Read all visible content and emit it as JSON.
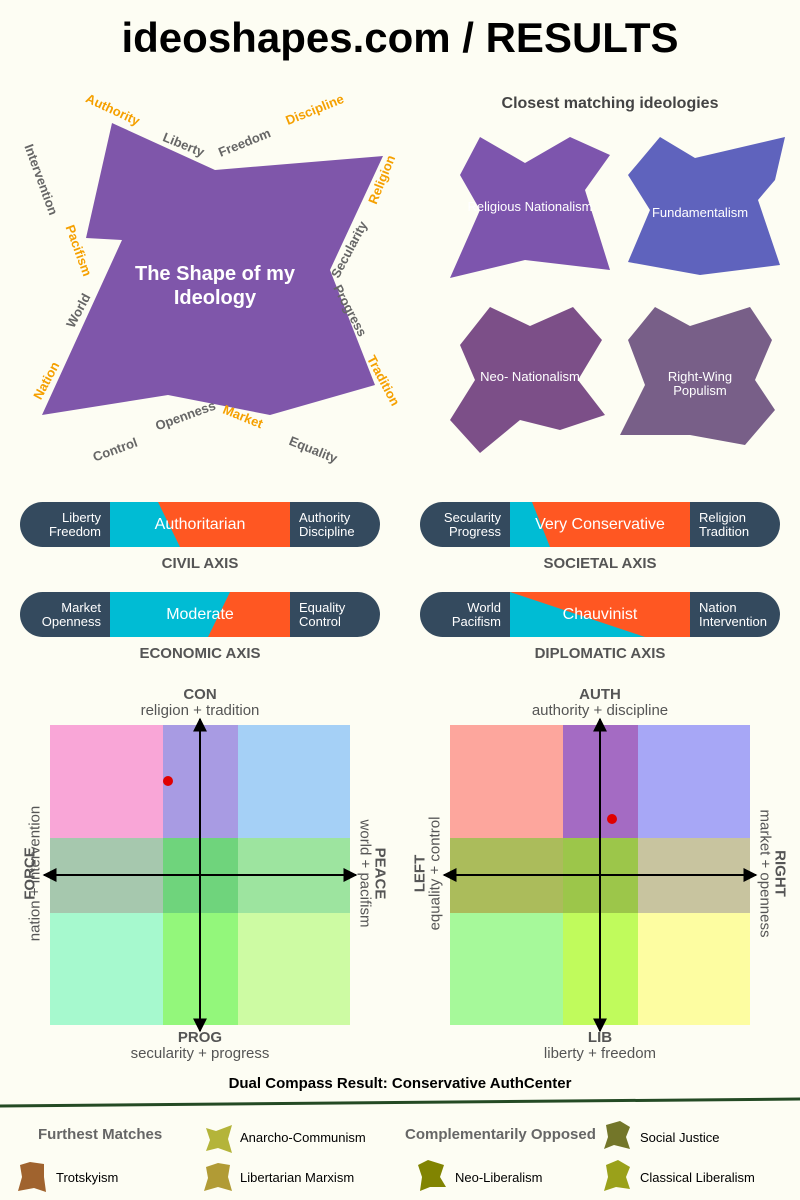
{
  "site": {
    "title": "ideoshapes.com / RESULTS"
  },
  "shape": {
    "title": "The Shape of my Ideology",
    "labels": {
      "authority": "Authority",
      "liberty": "Liberty",
      "freedom": "Freedom",
      "discipline": "Discipline",
      "religion": "Religion",
      "secularity": "Secularity",
      "progress": "Progress",
      "tradition": "Tradition",
      "equality": "Equality",
      "market": "Market",
      "openness": "Openness",
      "control": "Control",
      "nation": "Nation",
      "world": "World",
      "pacifism": "Pacifism",
      "intervention": "Intervention"
    },
    "color": "#7f56aa"
  },
  "closest": {
    "title": "Closest matching ideologies",
    "items": [
      {
        "label": "Religious Nationalism",
        "color": "#7d55ad"
      },
      {
        "label": "Fundamentalism",
        "color": "#5f63bd"
      },
      {
        "label": "Neo- Nationalism",
        "color": "#7c4f88"
      },
      {
        "label": "Right-Wing Populism",
        "color": "#785f88"
      }
    ]
  },
  "axes": {
    "civil": {
      "left": [
        "Liberty",
        "Freedom"
      ],
      "right": [
        "Authority",
        "Discipline"
      ],
      "result": "Authoritarian",
      "caption": "CIVIL AXIS"
    },
    "societal": {
      "left": [
        "Secularity",
        "Progress"
      ],
      "right": [
        "Religion",
        "Tradition"
      ],
      "result": "Very Conservative",
      "caption": "SOCIETAL AXIS"
    },
    "economic": {
      "left": [
        "Market",
        "Openness"
      ],
      "right": [
        "Equality",
        "Control"
      ],
      "result": "Moderate",
      "caption": "ECONOMIC AXIS"
    },
    "diplomatic": {
      "left": [
        "World",
        "Pacifism"
      ],
      "right": [
        "Nation",
        "Intervention"
      ],
      "result": "Chauvinist",
      "caption": "DIPLOMATIC AXIS"
    }
  },
  "compass_left": {
    "top": "CON",
    "top_sub": "religion + tradition",
    "bottom": "PROG",
    "bottom_sub": "secularity + progress",
    "left": "FORCE",
    "left_sub": "nation + intervention",
    "right": "PEACE",
    "right_sub": "world + pacifism"
  },
  "compass_right": {
    "top": "AUTH",
    "top_sub": "authority + discipline",
    "bottom": "LIB",
    "bottom_sub": "liberty + freedom",
    "left": "LEFT",
    "left_sub": "equality + control",
    "right": "RIGHT",
    "right_sub": "market + openness"
  },
  "dual_result": "Dual Compass Result: Conservative AuthCenter",
  "footer": {
    "furthest_title": "Furthest Matches",
    "opposed_title": "Complementarily Opposed",
    "furthest": [
      "Anarcho-Communism",
      "Trotskyism",
      "Libertarian Marxism"
    ],
    "opposed": [
      "Social Justice",
      "Neo-Liberalism",
      "Classical Liberalism"
    ]
  },
  "colors": {
    "axis_dark": "#344a5e",
    "cyan": "#00bcd4",
    "orange": "#ff5722",
    "dot": "#e00000"
  }
}
